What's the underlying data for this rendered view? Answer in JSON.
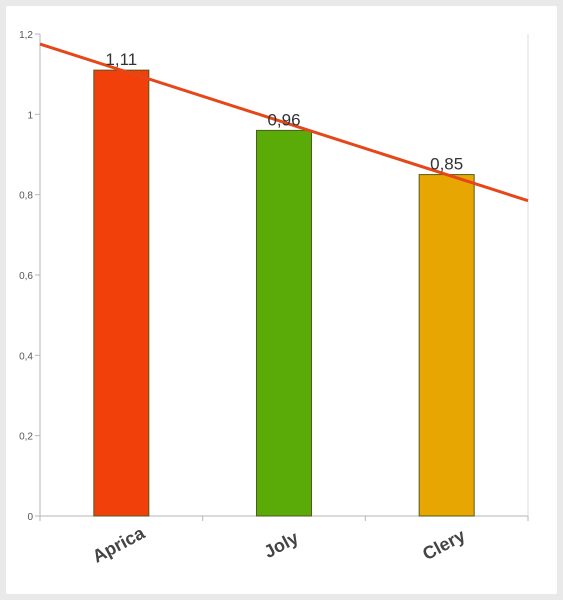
{
  "chart_data": {
    "type": "bar",
    "categories": [
      "Aprica",
      "Joly",
      "Clery"
    ],
    "values": [
      1.11,
      0.96,
      0.85
    ],
    "data_labels": [
      "1,11",
      "0,96",
      "0,85"
    ],
    "ylim": [
      0,
      1.2
    ],
    "yticks": [
      0,
      0.2,
      0.4,
      0.6,
      0.8,
      1,
      1.2
    ],
    "ytick_labels": [
      "0",
      "0,2",
      "0,4",
      "0,6",
      "0,8",
      "1",
      "1,2"
    ],
    "colors": [
      "#f2400a",
      "#5aab08",
      "#e8a602"
    ],
    "bar_outline": "#4f5a1c",
    "trendline": {
      "color": "#e5471a",
      "start_value": 1.175,
      "end_value": 0.785
    },
    "grid": false,
    "legend": "none",
    "title": "",
    "xlabel": "",
    "ylabel": ""
  }
}
